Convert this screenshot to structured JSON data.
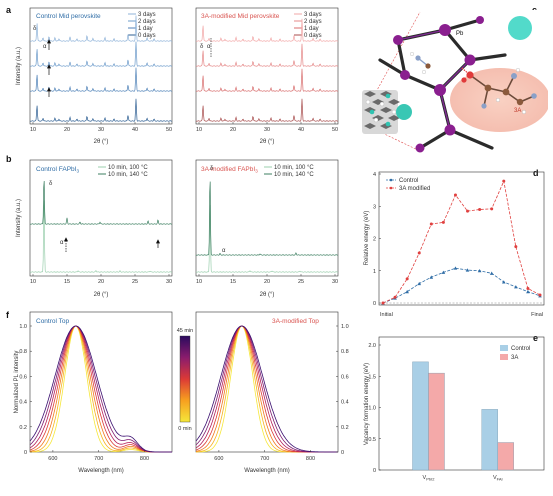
{
  "panels": {
    "a": {
      "label": "a",
      "left": {
        "title": "Control Mid perovskite",
        "legend": [
          "3 days",
          "2 days",
          "1 day",
          "0 days"
        ],
        "ylabel": "Intensity (a.u.)",
        "xlabel": "2θ (°)",
        "xticks": [
          "10",
          "20",
          "30",
          "40",
          "50"
        ],
        "ann_delta": "δ",
        "ann_alpha": "α"
      },
      "right": {
        "title": "3A-modified Mid perovskite",
        "legend": [
          "3 days",
          "2 days",
          "1 day",
          "0 days"
        ],
        "xlabel": "2θ (°)",
        "xticks": [
          "10",
          "20",
          "30",
          "40",
          "50"
        ],
        "ann_delta": "δ",
        "ann_alpha": "α"
      },
      "colors_left": [
        "#8fb3d9",
        "#6e9ccb",
        "#4f82b8",
        "#2e5f93"
      ],
      "colors_right": [
        "#f2a7a7",
        "#e58989",
        "#d86e6e",
        "#a84d4d"
      ]
    },
    "b": {
      "label": "b",
      "left": {
        "title": "Control FAPbI",
        "title_sub": "3",
        "legend": [
          "10 min, 100 °C",
          "10 min, 140 °C"
        ],
        "ylabel": "Intensity (a.u.)",
        "xlabel": "2θ (°)",
        "xticks": [
          "10",
          "15",
          "20",
          "25",
          "30"
        ],
        "ann_delta": "δ",
        "ann_alpha": "α"
      },
      "right": {
        "title": "3A-modified FAPbI",
        "title_sub": "3",
        "legend": [
          "10 min, 100 °C",
          "10 min, 140 °C"
        ],
        "xlabel": "2θ (°)",
        "xticks": [
          "10",
          "15",
          "20",
          "25",
          "30"
        ],
        "ann_delta": "δ",
        "ann_alpha": "α"
      },
      "colors": [
        "#9bcfae",
        "#3d7f61"
      ]
    },
    "c": {
      "label": "c",
      "atom_label": "Pb",
      "molecule_label": "3A"
    },
    "d": {
      "label": "d",
      "chart_data": {
        "type": "line",
        "ylabel": "Relative energy (eV)",
        "ylim": [
          0,
          4
        ],
        "yticks": [
          "0",
          "1",
          "2",
          "3",
          "4"
        ],
        "xticklabels": [
          "Initial",
          "Final"
        ],
        "x": [
          0,
          1,
          2,
          3,
          4,
          5,
          6,
          7,
          8,
          9,
          10,
          11,
          12,
          13
        ],
        "series": [
          {
            "name": "Control",
            "color": "#2f6da6",
            "values": [
              0.0,
              0.15,
              0.35,
              0.6,
              0.8,
              0.95,
              1.08,
              1.02,
              1.0,
              0.92,
              0.65,
              0.5,
              0.35,
              0.22
            ]
          },
          {
            "name": "3A modified",
            "color": "#e0403f",
            "values": [
              0.0,
              0.18,
              0.75,
              1.55,
              2.45,
              2.5,
              3.35,
              2.85,
              2.9,
              2.92,
              3.78,
              1.75,
              0.45,
              0.25
            ]
          }
        ]
      }
    },
    "e": {
      "label": "e",
      "chart_data": {
        "type": "bar",
        "ylabel": "Vacancy formation energy (eV)",
        "ylim": [
          0,
          2.0
        ],
        "yticks": [
          "0",
          "0.5",
          "1.0",
          "1.5",
          "2.0"
        ],
        "categories": [
          {
            "main": "V",
            "sub": "PbI2"
          },
          {
            "main": "V",
            "sub": "FAI"
          }
        ],
        "series": [
          {
            "name": "Control",
            "color": "#a9cfe6",
            "values": [
              1.73,
              0.97
            ]
          },
          {
            "name": "3A",
            "color": "#f4a9a9",
            "values": [
              1.55,
              0.44
            ]
          }
        ]
      }
    },
    "f": {
      "label": "f",
      "left": {
        "title": "Control Top",
        "ylabel": "Normalized PL intensity",
        "xlabel": "Wavelength (nm)",
        "xticks": [
          "600",
          "700",
          "800"
        ],
        "yticks": [
          "0",
          "0.2",
          "0.4",
          "0.6",
          "0.8",
          "1.0"
        ]
      },
      "right": {
        "title": "3A-modified Top",
        "xlabel": "Wavelength (nm)",
        "xticks": [
          "600",
          "700",
          "800"
        ],
        "yticks": [
          "0",
          "0.2",
          "0.4",
          "0.6",
          "0.8",
          "1.0"
        ]
      },
      "colorbar": {
        "top": "45 min",
        "bottom": "0 min"
      },
      "colors": [
        "#f5e73a",
        "#f7b21f",
        "#f0771f",
        "#dc3a36",
        "#b51f5a",
        "#7d1a6e",
        "#3b0f70"
      ]
    }
  }
}
